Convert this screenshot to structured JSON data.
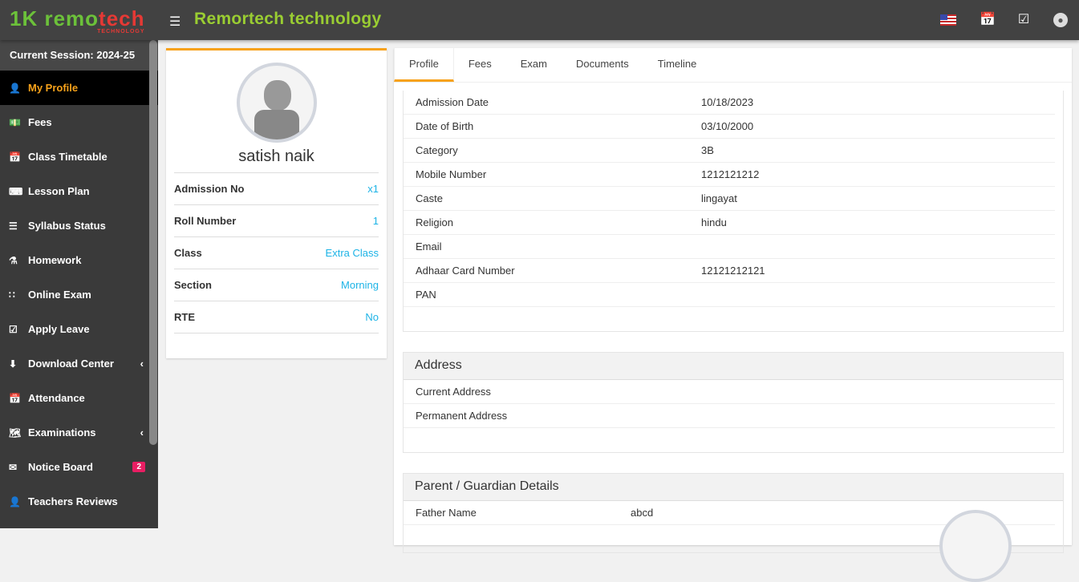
{
  "header": {
    "logo_text": "remotech",
    "logo_sub": "TECHNOLOGY",
    "title": "Remortech technology",
    "icons": [
      "us-flag-icon",
      "calendar-icon",
      "check-square-icon",
      "user-avatar-icon"
    ]
  },
  "sidebar": {
    "session": "Current Session: 2024-25",
    "items": [
      {
        "label": "My Profile",
        "icon": "user-plus-icon",
        "active": true
      },
      {
        "label": "Fees",
        "icon": "money-icon"
      },
      {
        "label": "Class Timetable",
        "icon": "calendar-plus-icon"
      },
      {
        "label": "Lesson Plan",
        "icon": "keyboard-icon"
      },
      {
        "label": "Syllabus Status",
        "icon": "list-icon"
      },
      {
        "label": "Homework",
        "icon": "flask-icon"
      },
      {
        "label": "Online Exam",
        "icon": "rss-icon"
      },
      {
        "label": "Apply Leave",
        "icon": "check-square-icon"
      },
      {
        "label": "Download Center",
        "icon": "download-icon",
        "has_children": true
      },
      {
        "label": "Attendance",
        "icon": "calendar-check-icon"
      },
      {
        "label": "Examinations",
        "icon": "map-icon",
        "has_children": true
      },
      {
        "label": "Notice Board",
        "icon": "envelope-icon",
        "badge": "2"
      },
      {
        "label": "Teachers Reviews",
        "icon": "user-secret-icon"
      }
    ]
  },
  "profile": {
    "name": "satish naik",
    "fields": [
      {
        "label": "Admission No",
        "value": "x1"
      },
      {
        "label": "Roll Number",
        "value": "1"
      },
      {
        "label": "Class",
        "value": "Extra Class"
      },
      {
        "label": "Section",
        "value": "Morning"
      },
      {
        "label": "RTE",
        "value": "No"
      }
    ]
  },
  "tabs": [
    {
      "label": "Profile",
      "active": true
    },
    {
      "label": "Fees"
    },
    {
      "label": "Exam"
    },
    {
      "label": "Documents"
    },
    {
      "label": "Timeline"
    }
  ],
  "details": [
    {
      "label": "Admission Date",
      "value": "10/18/2023"
    },
    {
      "label": "Date of Birth",
      "value": "03/10/2000"
    },
    {
      "label": "Category",
      "value": "3B"
    },
    {
      "label": "Mobile Number",
      "value": "1212121212"
    },
    {
      "label": "Caste",
      "value": "lingayat"
    },
    {
      "label": "Religion",
      "value": "hindu"
    },
    {
      "label": "Email",
      "value": ""
    },
    {
      "label": "Adhaar Card Number",
      "value": "12121212121"
    },
    {
      "label": "PAN",
      "value": ""
    }
  ],
  "address": {
    "title": "Address",
    "rows": [
      {
        "label": "Current Address",
        "value": ""
      },
      {
        "label": "Permanent Address",
        "value": ""
      }
    ]
  },
  "parent": {
    "title": "Parent / Guardian Details",
    "rows": [
      {
        "label": "Father Name",
        "value": "abcd"
      }
    ]
  }
}
